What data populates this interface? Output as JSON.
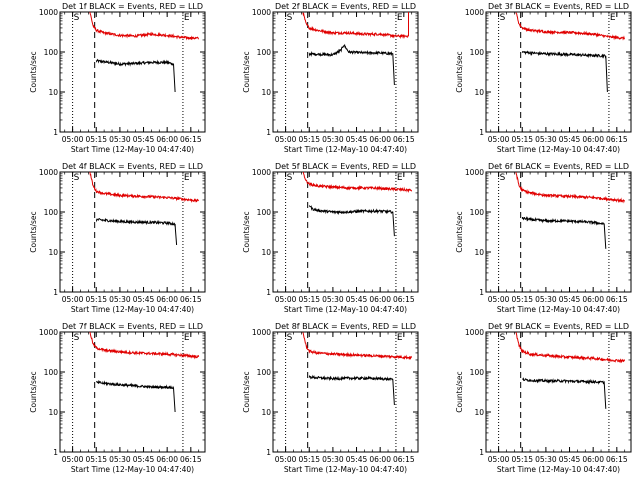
{
  "figure": {
    "background": "#ffffff",
    "axis_color": "#000000",
    "events_color": "#000000",
    "lld_color": "#e00000"
  },
  "chart_data": [
    {
      "type": "line",
      "title": "Det 1f BLACK = Events, RED = LLD",
      "xlabel": "Start Time (12-May-10 04:47:40)",
      "ylabel": "Counts/sec",
      "y_scale": "log",
      "ylim": [
        1,
        1000
      ],
      "xlim": [
        "04:52",
        "06:24"
      ],
      "x_ticks": [
        "05:00",
        "05:15",
        "05:30",
        "05:45",
        "06:00",
        "06:15"
      ],
      "y_ticks": [
        "1",
        "10",
        "100",
        "1000"
      ],
      "markers": {
        "S": "05:00",
        "E": "06:10"
      },
      "dotted_lines": [
        "05:00",
        "06:10"
      ],
      "dashed_line": "05:14",
      "series": [
        {
          "name": "Events",
          "color": "#000000",
          "x": [
            "05:15",
            "05:20",
            "05:30",
            "05:40",
            "05:50",
            "06:00",
            "06:04",
            "06:05"
          ],
          "y": [
            60,
            57,
            50,
            52,
            55,
            55,
            50,
            10
          ]
        },
        {
          "name": "LLD",
          "color": "#e00000",
          "x": [
            "05:11",
            "05:13",
            "05:15",
            "05:20",
            "05:30",
            "05:40",
            "05:50",
            "06:00",
            "06:10",
            "06:20"
          ],
          "y": [
            1000,
            450,
            350,
            300,
            260,
            250,
            280,
            260,
            230,
            220
          ]
        }
      ]
    },
    {
      "type": "line",
      "title": "Det 2f BLACK = Events, RED = LLD",
      "xlabel": "Start Time (12-May-10 04:47:40)",
      "ylabel": "Counts/sec",
      "y_scale": "log",
      "ylim": [
        1,
        1000
      ],
      "xlim": [
        "04:52",
        "06:24"
      ],
      "x_ticks": [
        "05:00",
        "05:15",
        "05:30",
        "05:45",
        "06:00",
        "06:15"
      ],
      "y_ticks": [
        "1",
        "10",
        "100",
        "1000"
      ],
      "markers": {
        "S": "05:00",
        "E": "06:10"
      },
      "dotted_lines": [
        "05:00",
        "06:10"
      ],
      "dashed_line": "05:14",
      "series": [
        {
          "name": "Events",
          "color": "#000000",
          "x": [
            "05:15",
            "05:20",
            "05:30",
            "05:35",
            "05:37",
            "05:40",
            "05:50",
            "06:00",
            "06:08",
            "06:09"
          ],
          "y": [
            90,
            88,
            85,
            110,
            150,
            100,
            95,
            95,
            90,
            15
          ]
        },
        {
          "name": "LLD",
          "color": "#e00000",
          "x": [
            "05:11",
            "05:13",
            "05:15",
            "05:20",
            "05:30",
            "05:40",
            "05:50",
            "06:00",
            "06:10",
            "06:18",
            "06:18",
            "06:18"
          ],
          "y": [
            1000,
            500,
            400,
            350,
            300,
            300,
            280,
            280,
            250,
            250,
            1000,
            250
          ]
        }
      ]
    },
    {
      "type": "line",
      "title": "Det 3f BLACK = Events, RED = LLD",
      "xlabel": "Start Time (12-May-10 04:47:40)",
      "ylabel": "Counts/sec",
      "y_scale": "log",
      "ylim": [
        1,
        1000
      ],
      "xlim": [
        "04:52",
        "06:24"
      ],
      "x_ticks": [
        "05:00",
        "05:15",
        "05:30",
        "05:45",
        "06:00",
        "06:15"
      ],
      "y_ticks": [
        "1",
        "10",
        "100",
        "1000"
      ],
      "markers": {
        "S": "05:00",
        "E": "06:10"
      },
      "dotted_lines": [
        "05:00",
        "06:10"
      ],
      "dashed_line": "05:14",
      "series": [
        {
          "name": "Events",
          "color": "#000000",
          "x": [
            "05:15",
            "05:20",
            "05:30",
            "05:40",
            "05:50",
            "06:00",
            "06:08",
            "06:09"
          ],
          "y": [
            100,
            95,
            90,
            88,
            85,
            82,
            80,
            10
          ]
        },
        {
          "name": "LLD",
          "color": "#e00000",
          "x": [
            "05:11",
            "05:13",
            "05:15",
            "05:20",
            "05:30",
            "05:40",
            "05:50",
            "06:00",
            "06:10",
            "06:20"
          ],
          "y": [
            1000,
            500,
            400,
            350,
            320,
            310,
            300,
            280,
            240,
            220
          ]
        }
      ]
    },
    {
      "type": "line",
      "title": "Det 4f BLACK = Events, RED = LLD",
      "xlabel": "Start Time (12-May-10 04:47:40)",
      "ylabel": "Counts/sec",
      "y_scale": "log",
      "ylim": [
        1,
        1000
      ],
      "xlim": [
        "04:52",
        "06:24"
      ],
      "x_ticks": [
        "05:00",
        "05:15",
        "05:30",
        "05:45",
        "06:00",
        "06:15"
      ],
      "y_ticks": [
        "1",
        "10",
        "100",
        "1000"
      ],
      "markers": {
        "S": "05:00",
        "E": "06:10"
      },
      "dotted_lines": [
        "05:00",
        "06:10"
      ],
      "dashed_line": "05:14",
      "series": [
        {
          "name": "Events",
          "color": "#000000",
          "x": [
            "05:15",
            "05:20",
            "05:30",
            "05:40",
            "05:50",
            "06:00",
            "06:05",
            "06:06"
          ],
          "y": [
            65,
            62,
            58,
            56,
            55,
            53,
            50,
            15
          ]
        },
        {
          "name": "LLD",
          "color": "#e00000",
          "x": [
            "05:11",
            "05:13",
            "05:15",
            "05:20",
            "05:30",
            "05:40",
            "05:50",
            "06:00",
            "06:10",
            "06:20"
          ],
          "y": [
            1000,
            450,
            330,
            290,
            260,
            250,
            240,
            230,
            210,
            190
          ]
        }
      ]
    },
    {
      "type": "line",
      "title": "Det 5f BLACK = Events, RED = LLD",
      "xlabel": "Start Time (12-May-10 04:47:40)",
      "ylabel": "Counts/sec",
      "y_scale": "log",
      "ylim": [
        1,
        1000
      ],
      "xlim": [
        "04:52",
        "06:24"
      ],
      "x_ticks": [
        "05:00",
        "05:15",
        "05:30",
        "05:45",
        "06:00",
        "06:15"
      ],
      "y_ticks": [
        "1",
        "10",
        "100",
        "1000"
      ],
      "markers": {
        "S": "05:00",
        "E": "06:10"
      },
      "dotted_lines": [
        "05:00",
        "06:10"
      ],
      "dashed_line": "05:14",
      "series": [
        {
          "name": "Events",
          "color": "#000000",
          "x": [
            "05:15",
            "05:17",
            "05:20",
            "05:30",
            "05:40",
            "05:50",
            "06:00",
            "06:08",
            "06:09"
          ],
          "y": [
            150,
            120,
            110,
            100,
            100,
            105,
            105,
            100,
            25
          ]
        },
        {
          "name": "LLD",
          "color": "#e00000",
          "x": [
            "05:11",
            "05:13",
            "05:15",
            "05:20",
            "05:30",
            "05:40",
            "05:50",
            "06:00",
            "06:10",
            "06:20"
          ],
          "y": [
            1000,
            600,
            500,
            450,
            420,
            400,
            400,
            390,
            370,
            350
          ]
        }
      ]
    },
    {
      "type": "line",
      "title": "Det 6f BLACK = Events, RED = LLD",
      "xlabel": "Start Time (12-May-10 04:47:40)",
      "ylabel": "Counts/sec",
      "y_scale": "log",
      "ylim": [
        1,
        1000
      ],
      "xlim": [
        "04:52",
        "06:24"
      ],
      "x_ticks": [
        "05:00",
        "05:15",
        "05:30",
        "05:45",
        "06:00",
        "06:15"
      ],
      "y_ticks": [
        "1",
        "10",
        "100",
        "1000"
      ],
      "markers": {
        "S": "05:00",
        "E": "06:10"
      },
      "dotted_lines": [
        "05:00",
        "06:10"
      ],
      "dashed_line": "05:14",
      "series": [
        {
          "name": "Events",
          "color": "#000000",
          "x": [
            "05:15",
            "05:20",
            "05:30",
            "05:40",
            "05:50",
            "06:00",
            "06:07",
            "06:08"
          ],
          "y": [
            70,
            65,
            60,
            60,
            58,
            55,
            50,
            12
          ]
        },
        {
          "name": "LLD",
          "color": "#e00000",
          "x": [
            "05:11",
            "05:13",
            "05:15",
            "05:20",
            "05:30",
            "05:40",
            "05:50",
            "06:00",
            "06:10",
            "06:20"
          ],
          "y": [
            1000,
            450,
            350,
            300,
            260,
            250,
            240,
            230,
            210,
            190
          ]
        }
      ]
    },
    {
      "type": "line",
      "title": "Det 7f BLACK = Events, RED = LLD",
      "xlabel": "Start Time (12-May-10 04:47:40)",
      "ylabel": "Counts/sec",
      "y_scale": "log",
      "ylim": [
        1,
        1000
      ],
      "xlim": [
        "04:52",
        "06:24"
      ],
      "x_ticks": [
        "05:00",
        "05:15",
        "05:30",
        "05:45",
        "06:00",
        "06:15"
      ],
      "y_ticks": [
        "1",
        "10",
        "100",
        "1000"
      ],
      "markers": {
        "S": "05:00",
        "E": "06:10"
      },
      "dotted_lines": [
        "05:00",
        "06:10"
      ],
      "dashed_line": "05:14",
      "series": [
        {
          "name": "Events",
          "color": "#000000",
          "x": [
            "05:15",
            "05:20",
            "05:30",
            "05:40",
            "05:50",
            "06:00",
            "06:04",
            "06:05"
          ],
          "y": [
            55,
            52,
            48,
            45,
            42,
            42,
            40,
            10
          ]
        },
        {
          "name": "LLD",
          "color": "#e00000",
          "x": [
            "05:11",
            "05:13",
            "05:15",
            "05:20",
            "05:30",
            "05:40",
            "05:50",
            "06:00",
            "06:10",
            "06:20"
          ],
          "y": [
            1000,
            500,
            400,
            350,
            320,
            300,
            290,
            280,
            260,
            240
          ]
        }
      ]
    },
    {
      "type": "line",
      "title": "Det 8f BLACK = Events, RED = LLD",
      "xlabel": "Start Time (12-May-10 04:47:40)",
      "ylabel": "Counts/sec",
      "y_scale": "log",
      "ylim": [
        1,
        1000
      ],
      "xlim": [
        "04:52",
        "06:24"
      ],
      "x_ticks": [
        "05:00",
        "05:15",
        "05:30",
        "05:45",
        "06:00",
        "06:15"
      ],
      "y_ticks": [
        "1",
        "10",
        "100",
        "1000"
      ],
      "markers": {
        "S": "05:00",
        "E": "06:10"
      },
      "dotted_lines": [
        "05:00",
        "06:10"
      ],
      "dashed_line": "05:14",
      "series": [
        {
          "name": "Events",
          "color": "#000000",
          "x": [
            "05:15",
            "05:20",
            "05:30",
            "05:40",
            "05:50",
            "06:00",
            "06:08",
            "06:09"
          ],
          "y": [
            75,
            72,
            68,
            70,
            70,
            68,
            65,
            15
          ]
        },
        {
          "name": "LLD",
          "color": "#e00000",
          "x": [
            "05:11",
            "05:13",
            "05:15",
            "05:20",
            "05:30",
            "05:40",
            "05:50",
            "06:00",
            "06:10",
            "06:20"
          ],
          "y": [
            1000,
            450,
            330,
            300,
            280,
            270,
            260,
            250,
            240,
            230
          ]
        }
      ]
    },
    {
      "type": "line",
      "title": "Det 9f BLACK = Events, RED = LLD",
      "xlabel": "Start Time (12-May-10 04:47:40)",
      "ylabel": "Counts/sec",
      "y_scale": "log",
      "ylim": [
        1,
        1000
      ],
      "xlim": [
        "04:52",
        "06:24"
      ],
      "x_ticks": [
        "05:00",
        "05:15",
        "05:30",
        "05:45",
        "06:00",
        "06:15"
      ],
      "y_ticks": [
        "1",
        "10",
        "100",
        "1000"
      ],
      "markers": {
        "S": "05:00",
        "E": "06:10"
      },
      "dotted_lines": [
        "05:00",
        "06:10"
      ],
      "dashed_line": "05:14",
      "series": [
        {
          "name": "Events",
          "color": "#000000",
          "x": [
            "05:15",
            "05:20",
            "05:30",
            "05:40",
            "05:50",
            "06:00",
            "06:07",
            "06:08"
          ],
          "y": [
            65,
            62,
            60,
            60,
            58,
            57,
            55,
            12
          ]
        },
        {
          "name": "LLD",
          "color": "#e00000",
          "x": [
            "05:11",
            "05:13",
            "05:15",
            "05:20",
            "05:30",
            "05:40",
            "05:50",
            "06:00",
            "06:10",
            "06:20"
          ],
          "y": [
            1000,
            450,
            330,
            280,
            260,
            240,
            230,
            220,
            200,
            190
          ]
        }
      ]
    }
  ]
}
